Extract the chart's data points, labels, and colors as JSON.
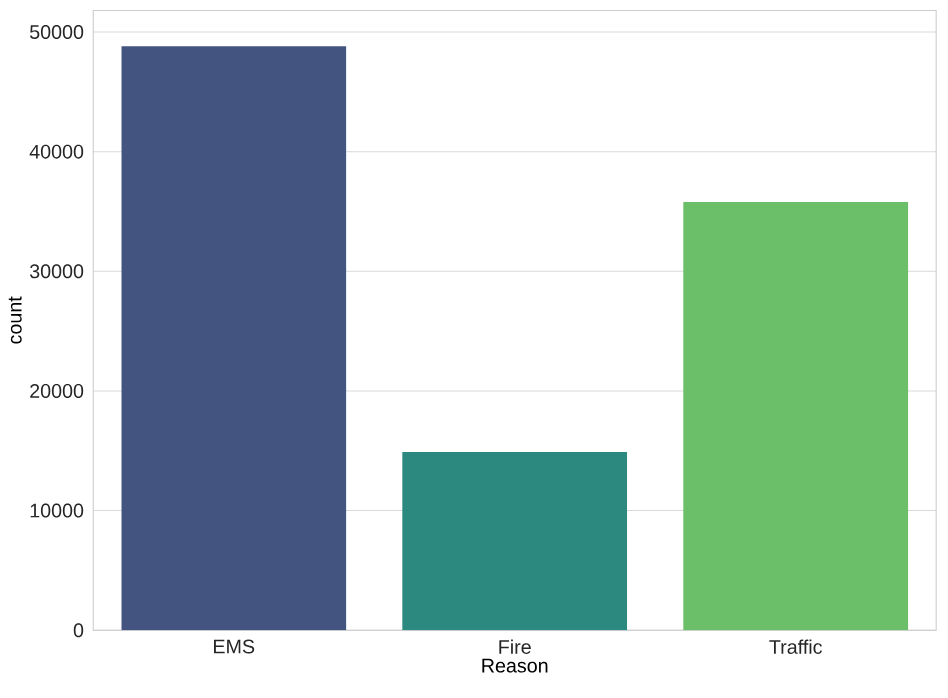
{
  "chart_data": {
    "type": "bar",
    "xlabel": "Reason",
    "ylabel": "count",
    "categories": [
      "EMS",
      "Fire",
      "Traffic"
    ],
    "values": [
      48800,
      14900,
      35800
    ],
    "colors": [
      "#435481",
      "#2c897f",
      "#6bbf69"
    ],
    "ylim": [
      0,
      51800
    ],
    "yticks": [
      0,
      10000,
      20000,
      30000,
      40000,
      50000
    ],
    "grid": "y"
  }
}
